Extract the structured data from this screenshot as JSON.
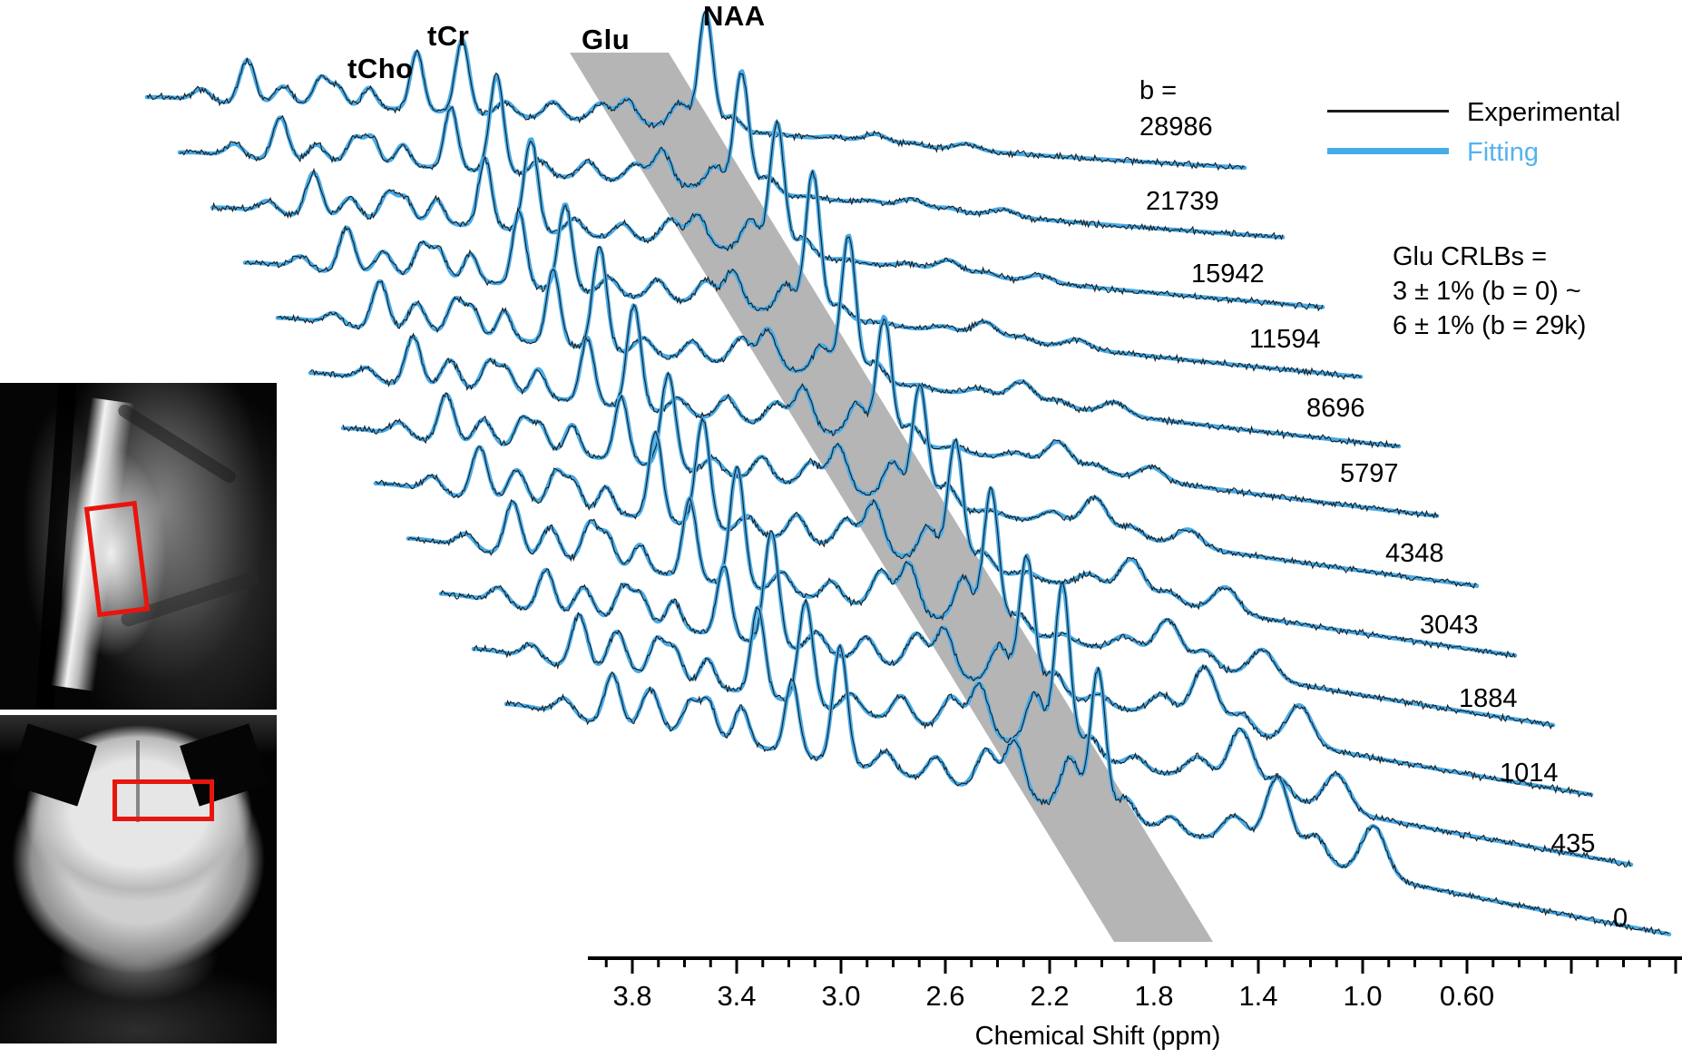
{
  "figure": {
    "legend": {
      "experimental_label": "Experimental",
      "fitting_label": "Fitting"
    },
    "annotation": {
      "line1": "Glu CRLBs =",
      "line2": "3 ± 1% (b = 0) ~",
      "line3": "6 ± 1% (b = 29k)"
    },
    "colors": {
      "fitting_line": "#47abe8",
      "fitting_text": "#55b3ee",
      "experimental_line": "#1c1c1c",
      "highlight_band": "#b5b5b5",
      "roi_box": "#e8150e",
      "mri_background": "#040404"
    },
    "mri_panels": {
      "top": {
        "view": "sagittal-localizer",
        "roi": "red-voxel-box"
      },
      "bottom": {
        "view": "coronal-localizer",
        "roi": "red-voxel-box"
      }
    }
  },
  "chart_data": {
    "type": "line",
    "title": "",
    "xlabel": "Chemical Shift (ppm)",
    "x_tick_labels": [
      "3.8",
      "3.4",
      "3.0",
      "2.6",
      "2.2",
      "1.8",
      "1.4",
      "1.0",
      "0.60"
    ],
    "x_tick_values": [
      3.8,
      3.4,
      3.0,
      2.6,
      2.2,
      1.8,
      1.4,
      1.0,
      0.6
    ],
    "x_axis_range_ppm": [
      4.35,
      -0.25
    ],
    "x_axis_direction": "reversed",
    "grid": false,
    "legend_position": "upper-right",
    "metabolite_labels": [
      "tCho",
      "tCr",
      "Glu",
      "NAA"
    ],
    "metabolite_peak_ppm": {
      "tCho": 3.22,
      "tCr": 3.03,
      "Glu": 2.34,
      "NAA": 2.01
    },
    "b_label_prefix": "b =",
    "b_values": [
      28986,
      21739,
      15942,
      11594,
      8696,
      5797,
      4348,
      3043,
      1884,
      1014,
      435,
      0
    ],
    "b_value_labels": [
      "28986",
      "21739",
      "15942",
      "11594",
      "8696",
      "5797",
      "4348",
      "3043",
      "1884",
      "1014",
      "435",
      "0"
    ],
    "series": [
      {
        "name": "Experimental",
        "style": "thin-black-noisy"
      },
      {
        "name": "Fitting",
        "style": "thick-blue-smooth"
      }
    ],
    "highlight_band_region": "Glu ~2.2-2.5 ppm followed across all b-values",
    "peak_model": [
      {
        "ppm": 4.12,
        "amp": 0.16,
        "w": 0.05,
        "cls": "m"
      },
      {
        "ppm": 3.93,
        "amp": 0.5,
        "w": 0.045,
        "cls": "s"
      },
      {
        "ppm": 3.78,
        "amp": 0.36,
        "w": 0.05,
        "cls": "g"
      },
      {
        "ppm": 3.62,
        "amp": 0.38,
        "w": 0.045,
        "cls": "m"
      },
      {
        "ppm": 3.55,
        "amp": 0.32,
        "w": 0.04,
        "cls": "m"
      },
      {
        "ppm": 3.42,
        "amp": 0.3,
        "w": 0.04,
        "cls": "m"
      },
      {
        "ppm": 3.22,
        "amp": 0.78,
        "w": 0.038,
        "cls": "s"
      },
      {
        "ppm": 3.03,
        "amp": 1.05,
        "w": 0.04,
        "cls": "s"
      },
      {
        "ppm": 2.85,
        "amp": 0.2,
        "w": 0.05,
        "cls": "m"
      },
      {
        "ppm": 2.65,
        "amp": 0.24,
        "w": 0.05,
        "cls": "m"
      },
      {
        "ppm": 2.45,
        "amp": 0.36,
        "w": 0.055,
        "cls": "g"
      },
      {
        "ppm": 2.34,
        "amp": 0.55,
        "w": 0.05,
        "cls": "g"
      },
      {
        "ppm": 2.12,
        "amp": 0.45,
        "w": 0.05,
        "cls": "g"
      },
      {
        "ppm": 2.01,
        "amp": 1.45,
        "w": 0.042,
        "cls": "s"
      },
      {
        "ppm": 1.9,
        "amp": 0.22,
        "w": 0.05,
        "cls": "m"
      },
      {
        "ppm": 1.72,
        "amp": 0.12,
        "w": 0.05,
        "cls": "mm"
      },
      {
        "ppm": 1.47,
        "amp": 0.28,
        "w": 0.07,
        "cls": "mm"
      },
      {
        "ppm": 1.3,
        "amp": 0.75,
        "w": 0.07,
        "cls": "mm"
      },
      {
        "ppm": 1.15,
        "amp": 0.25,
        "w": 0.06,
        "cls": "mm"
      },
      {
        "ppm": 0.92,
        "amp": 0.45,
        "w": 0.07,
        "cls": "mm"
      }
    ]
  }
}
